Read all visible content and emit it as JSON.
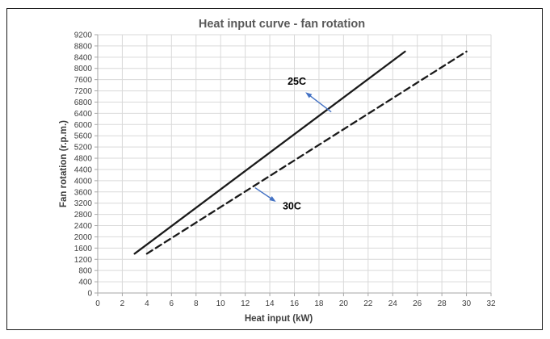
{
  "chart_data": {
    "type": "line",
    "title": "Heat input curve - fan rotation",
    "xlabel": "Heat input (kW)",
    "ylabel": "Fan rotation (r.p.m.)",
    "xlim": [
      0,
      32
    ],
    "x_tick_step": 2,
    "ylim": [
      0,
      9200
    ],
    "y_tick_step": 400,
    "grid": true,
    "series": [
      {
        "name": "25C",
        "line_style": "solid",
        "color": "#1a1a1a",
        "points": [
          [
            3,
            1400
          ],
          [
            25,
            8600
          ]
        ]
      },
      {
        "name": "30C",
        "line_style": "dashed",
        "color": "#1a1a1a",
        "points": [
          [
            4,
            1400
          ],
          [
            30,
            8600
          ]
        ]
      }
    ],
    "annotations": [
      {
        "label": "25C",
        "label_at": [
          16.2,
          7550
        ],
        "arrow_from": [
          19.0,
          6450
        ],
        "arrow_to": [
          16.9,
          7150
        ],
        "arrow_color": "#4472c4"
      },
      {
        "label": "30C",
        "label_at": [
          15.8,
          3100
        ],
        "arrow_from": [
          12.8,
          3750
        ],
        "arrow_to": [
          14.5,
          3250
        ],
        "arrow_color": "#4472c4"
      }
    ],
    "colors": {
      "gridline": "#d9d9d9",
      "axis_line": "#a6a6a6",
      "tick_label": "#404040",
      "title": "#595959",
      "axis_title": "#404040",
      "annotation_text": "#000000",
      "frame_border": "#1a1a1a",
      "background": "#ffffff"
    }
  }
}
